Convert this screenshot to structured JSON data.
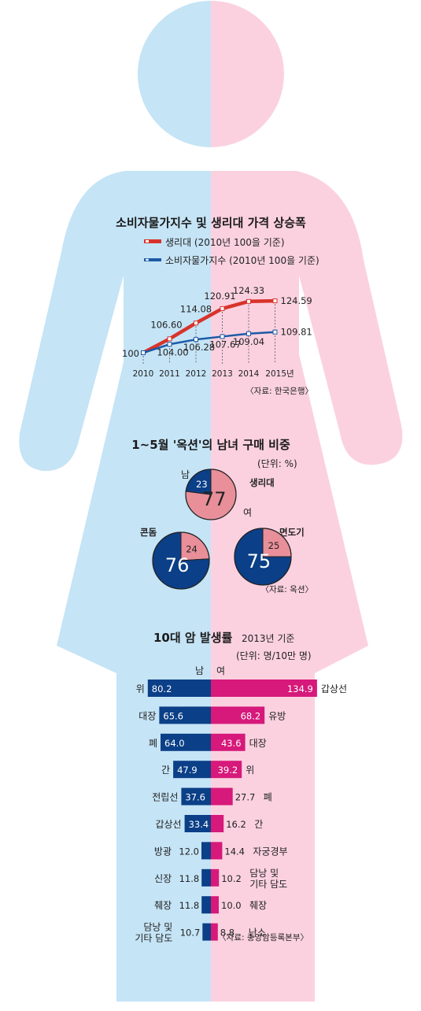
{
  "colors": {
    "male_bg": "#c5e4f6",
    "female_bg": "#fbd1e0",
    "red_line": "#d8332b",
    "blue_line": "#1c5aa6",
    "navy": "#0b3f87",
    "magenta": "#d6197a",
    "pink_slice": "#e88f9a"
  },
  "chart_data": [
    {
      "type": "line",
      "title": "소비자물가지수 및 생리대 가격 상승폭",
      "x": [
        "2010",
        "2011",
        "2012",
        "2013",
        "2014",
        "2015년"
      ],
      "series": [
        {
          "name": "생리대 (2010년 100을 기준)",
          "values": [
            100,
            106.6,
            114.08,
            120.91,
            124.33,
            124.59
          ],
          "labels": [
            "100",
            "106.60",
            "114.08",
            "120.91",
            "124.33",
            "124.59"
          ]
        },
        {
          "name": "소비자물가지수 (2010년 100을 기준)",
          "values": [
            100,
            104.0,
            106.28,
            107.67,
            109.04,
            109.81
          ],
          "labels": [
            "",
            "104.00",
            "106.28",
            "107.67",
            "109.04",
            "109.81"
          ]
        }
      ],
      "source": "〈자료: 한국은행〉"
    },
    {
      "type": "pie",
      "title": "1~5월 '옥션'의 남녀 구매 비중",
      "unit": "(단위: %)",
      "legend_male": "남",
      "legend_female": "여",
      "pies": [
        {
          "name": "생리대",
          "male": 23,
          "female": 77
        },
        {
          "name": "콘돔",
          "male": 76,
          "female": 24
        },
        {
          "name": "면도기",
          "male": 75,
          "female": 25
        }
      ],
      "source": "〈자료: 옥션〉"
    },
    {
      "type": "bar",
      "title": "10대 암 발생률",
      "subtitle": "2013년 기준",
      "unit": "(단위: 명/10만 명)",
      "male_header": "남",
      "female_header": "여",
      "male": [
        {
          "name": "위",
          "value": 80.2,
          "label": "80.2"
        },
        {
          "name": "대장",
          "value": 65.6,
          "label": "65.6"
        },
        {
          "name": "폐",
          "value": 64.0,
          "label": "64.0"
        },
        {
          "name": "간",
          "value": 47.9,
          "label": "47.9"
        },
        {
          "name": "전립선",
          "value": 37.6,
          "label": "37.6"
        },
        {
          "name": "갑상선",
          "value": 33.4,
          "label": "33.4"
        },
        {
          "name": "방광",
          "value": 12.0,
          "label": "12.0"
        },
        {
          "name": "신장",
          "value": 11.8,
          "label": "11.8"
        },
        {
          "name": "췌장",
          "value": 11.8,
          "label": "11.8"
        },
        {
          "name": "담낭 및\n기타 담도",
          "value": 10.7,
          "label": "10.7"
        }
      ],
      "female": [
        {
          "name": "갑상선",
          "value": 134.9,
          "label": "134.9"
        },
        {
          "name": "유방",
          "value": 68.2,
          "label": "68.2"
        },
        {
          "name": "대장",
          "value": 43.6,
          "label": "43.6"
        },
        {
          "name": "위",
          "value": 39.2,
          "label": "39.2"
        },
        {
          "name": "폐",
          "value": 27.7,
          "label": "27.7"
        },
        {
          "name": "간",
          "value": 16.2,
          "label": "16.2"
        },
        {
          "name": "자궁경부",
          "value": 14.4,
          "label": "14.4"
        },
        {
          "name": "담낭 및\n기타 담도",
          "value": 10.2,
          "label": "10.2"
        },
        {
          "name": "췌장",
          "value": 10.0,
          "label": "10.0"
        },
        {
          "name": "난소",
          "value": 8.8,
          "label": "8.8"
        }
      ],
      "source": "〈자료: 중앙암등록본부〉"
    }
  ]
}
